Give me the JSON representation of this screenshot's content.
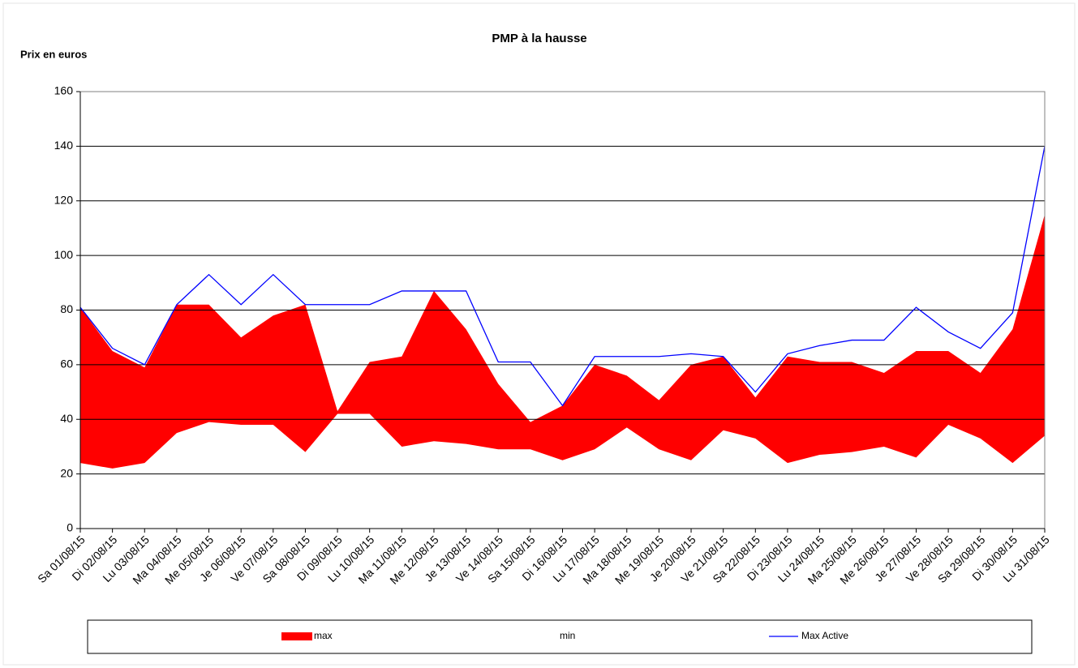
{
  "chart_data": {
    "type": "area",
    "title": "PMP à la hausse",
    "y_label": "Prix en euros",
    "categories": [
      "Sa 01/08/15",
      "Di 02/08/15",
      "Lu 03/08/15",
      "Ma 04/08/15",
      "Me 05/08/15",
      "Je 06/08/15",
      "Ve 07/08/15",
      "Sa 08/08/15",
      "Di 09/08/15",
      "Lu 10/08/15",
      "Ma 11/08/15",
      "Me 12/08/15",
      "Je 13/08/15",
      "Ve 14/08/15",
      "Sa 15/08/15",
      "Di 16/08/15",
      "Lu 17/08/15",
      "Ma 18/08/15",
      "Me 19/08/15",
      "Je 20/08/15",
      "Ve 21/08/15",
      "Sa 22/08/15",
      "Di 23/08/15",
      "Lu 24/08/15",
      "Ma 25/08/15",
      "Me 26/08/15",
      "Je 27/08/15",
      "Ve 28/08/15",
      "Sa 29/08/15",
      "Di 30/08/15",
      "Lu 31/08/15"
    ],
    "series": [
      {
        "name": "max",
        "color": "#ff0000",
        "kind": "area",
        "values": [
          81,
          65,
          59,
          82,
          82,
          70,
          78,
          82,
          43,
          61,
          63,
          87,
          73,
          53,
          39,
          45,
          60,
          56,
          47,
          60,
          63,
          48,
          63,
          61,
          61,
          57,
          65,
          65,
          57,
          73,
          115
        ]
      },
      {
        "name": "min",
        "color": "#ffffff",
        "kind": "area",
        "values": [
          24,
          22,
          24,
          35,
          39,
          38,
          38,
          28,
          42,
          42,
          30,
          32,
          31,
          29,
          29,
          25,
          29,
          37,
          29,
          25,
          36,
          33,
          24,
          27,
          28,
          30,
          26,
          38,
          33,
          24,
          34
        ]
      },
      {
        "name": "Max Active",
        "color": "#0000ff",
        "kind": "line",
        "values": [
          81,
          66,
          60,
          82,
          93,
          82,
          93,
          82,
          82,
          82,
          87,
          87,
          87,
          61,
          61,
          45,
          63,
          63,
          63,
          64,
          63,
          50,
          64,
          67,
          69,
          69,
          81,
          72,
          66,
          79,
          140
        ]
      }
    ],
    "ylim": [
      0,
      160
    ],
    "yticks": [
      0,
      20,
      40,
      60,
      80,
      100,
      120,
      140,
      160
    ],
    "grid": true
  }
}
